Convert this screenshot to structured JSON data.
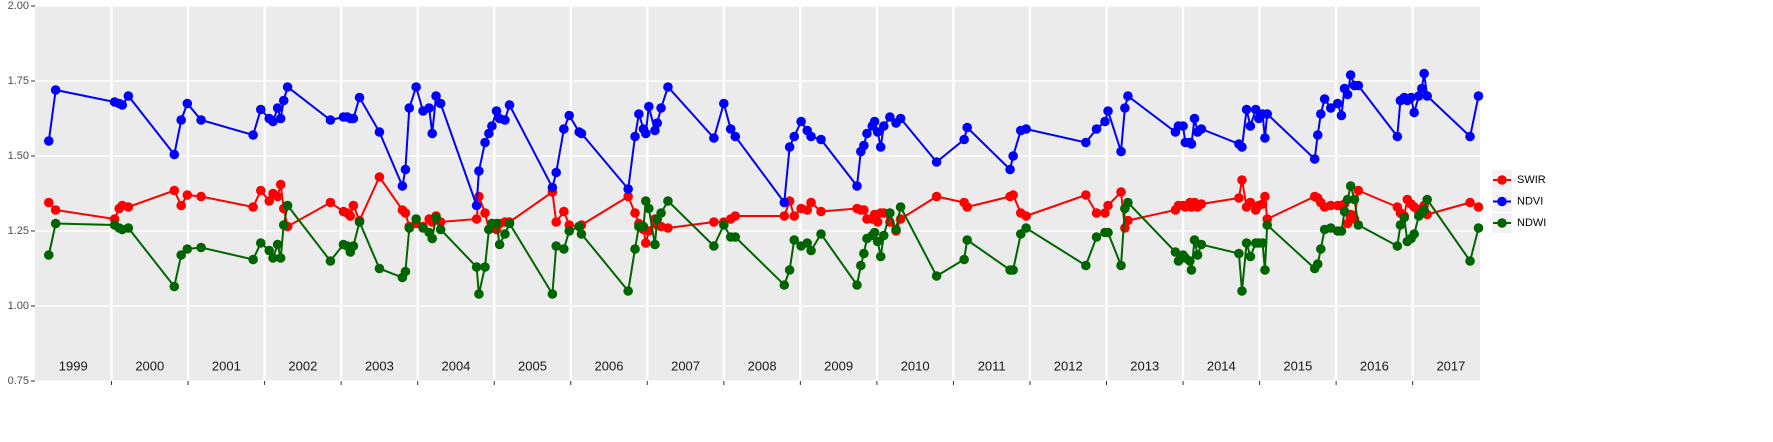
{
  "chart_data": {
    "type": "line",
    "legend": "right",
    "grid": true,
    "background": "#ebebeb",
    "xlim": [
      1999.0,
      2017.88
    ],
    "ylim": [
      0.75,
      2.0
    ],
    "yticks": [
      0.75,
      {
        "value": 1,
        "label": "1.00"
      },
      1.25,
      {
        "value": 1.5,
        "label": "1.50"
      },
      1.75,
      {
        "value": 2,
        "label": "2.00"
      }
    ],
    "xticks": [
      2000,
      2001,
      2002,
      2003,
      2004,
      2005,
      2006,
      2007,
      2008,
      2009,
      2010,
      2011,
      2012,
      2013,
      2014,
      2015,
      2016,
      2017
    ],
    "annotations": [
      {
        "x": 1999.5,
        "text": "1999"
      },
      {
        "x": 2000.5,
        "text": "2000"
      },
      {
        "x": 2001.5,
        "text": "2001"
      },
      {
        "x": 2002.5,
        "text": "2002"
      },
      {
        "x": 2003.5,
        "text": "2003"
      },
      {
        "x": 2004.5,
        "text": "2004"
      },
      {
        "x": 2005.5,
        "text": "2005"
      },
      {
        "x": 2006.5,
        "text": "2006"
      },
      {
        "x": 2007.5,
        "text": "2007"
      },
      {
        "x": 2008.5,
        "text": "2008"
      },
      {
        "x": 2009.5,
        "text": "2009"
      },
      {
        "x": 2010.5,
        "text": "2010"
      },
      {
        "x": 2011.5,
        "text": "2011"
      },
      {
        "x": 2012.5,
        "text": "2012"
      },
      {
        "x": 2013.5,
        "text": "2013"
      },
      {
        "x": 2014.5,
        "text": "2014"
      },
      {
        "x": 2015.5,
        "text": "2015"
      },
      {
        "x": 2016.5,
        "text": "2016"
      },
      {
        "x": 2017.5,
        "text": "2017"
      }
    ],
    "x": [
      1999.18,
      1999.27,
      2000.04,
      2000.1,
      2000.14,
      2000.22,
      2000.82,
      2000.91,
      2000.99,
      2001.17,
      2001.85,
      2001.95,
      2002.06,
      2002.11,
      2002.17,
      2002.21,
      2002.25,
      2002.3,
      2002.86,
      2003.03,
      2003.08,
      2003.12,
      2003.16,
      2003.24,
      2003.5,
      2003.8,
      2003.84,
      2003.89,
      2003.98,
      2004.07,
      2004.15,
      2004.19,
      2004.24,
      2004.3,
      2004.77,
      2004.8,
      2004.88,
      2004.93,
      2004.97,
      2005.03,
      2005.07,
      2005.14,
      2005.2,
      2005.76,
      2005.81,
      2005.91,
      2005.98,
      2006.11,
      2006.14,
      2006.75,
      2006.84,
      2006.89,
      2006.95,
      2006.98,
      2007.02,
      2007.1,
      2007.13,
      2007.18,
      2007.27,
      2007.87,
      2008.0,
      2008.09,
      2008.15,
      2008.79,
      2008.86,
      2008.92,
      2009.01,
      2009.09,
      2009.14,
      2009.27,
      2009.74,
      2009.79,
      2009.83,
      2009.87,
      2009.94,
      2009.97,
      2010.01,
      2010.05,
      2010.09,
      2010.17,
      2010.25,
      2010.31,
      2010.78,
      2011.14,
      2011.18,
      2011.74,
      2011.78,
      2011.88,
      2011.95,
      2012.73,
      2012.87,
      2012.98,
      2013.02,
      2013.19,
      2013.24,
      2013.28,
      2013.9,
      2013.94,
      2014.0,
      2014.03,
      2014.09,
      2014.11,
      2014.15,
      2014.19,
      2014.24,
      2014.73,
      2014.77,
      2014.83,
      2014.88,
      2014.95,
      2014.99,
      2015.04,
      2015.07,
      2015.1,
      2015.72,
      2015.76,
      2015.8,
      2015.85,
      2015.93,
      2016.02,
      2016.07,
      2016.11,
      2016.15,
      2016.19,
      2016.24,
      2016.29,
      2016.8,
      2016.84,
      2016.89,
      2016.93,
      2016.98,
      2017.02,
      2017.08,
      2017.12,
      2017.15,
      2017.19,
      2017.75,
      2017.86
    ],
    "series": [
      {
        "name": "SWIR",
        "color": "#ff0000",
        "values": [
          1.345,
          1.32,
          1.29,
          1.325,
          1.335,
          1.33,
          1.385,
          1.335,
          1.37,
          1.365,
          1.33,
          1.385,
          1.35,
          1.375,
          1.365,
          1.405,
          1.325,
          1.265,
          1.345,
          1.315,
          1.31,
          1.3,
          1.335,
          1.285,
          1.43,
          1.32,
          1.31,
          1.265,
          1.275,
          1.265,
          1.29,
          1.28,
          1.3,
          1.28,
          1.29,
          1.365,
          1.31,
          1.255,
          1.275,
          1.255,
          1.275,
          1.28,
          1.28,
          1.38,
          1.28,
          1.315,
          1.27,
          1.265,
          1.27,
          1.365,
          1.31,
          1.275,
          1.255,
          1.21,
          1.25,
          1.29,
          1.27,
          1.265,
          1.26,
          1.28,
          1.28,
          1.29,
          1.3,
          1.3,
          1.35,
          1.3,
          1.325,
          1.32,
          1.345,
          1.315,
          1.325,
          1.32,
          1.32,
          1.29,
          1.29,
          1.305,
          1.28,
          1.31,
          1.31,
          1.28,
          1.25,
          1.29,
          1.365,
          1.345,
          1.33,
          1.365,
          1.37,
          1.31,
          1.3,
          1.37,
          1.31,
          1.31,
          1.335,
          1.38,
          1.26,
          1.285,
          1.32,
          1.335,
          1.335,
          1.33,
          1.345,
          1.33,
          1.345,
          1.33,
          1.34,
          1.36,
          1.42,
          1.33,
          1.345,
          1.32,
          1.335,
          1.34,
          1.365,
          1.29,
          1.365,
          1.36,
          1.345,
          1.33,
          1.335,
          1.335,
          1.335,
          1.34,
          1.275,
          1.305,
          1.29,
          1.385,
          1.33,
          1.31,
          1.3,
          1.355,
          1.34,
          1.33,
          1.315,
          1.325,
          1.335,
          1.305,
          1.345,
          1.33
        ]
      },
      {
        "name": "NDVI",
        "color": "#0000ff",
        "values": [
          1.55,
          1.72,
          1.68,
          1.675,
          1.67,
          1.7,
          1.505,
          1.62,
          1.675,
          1.62,
          1.57,
          1.655,
          1.625,
          1.615,
          1.66,
          1.625,
          1.685,
          1.73,
          1.62,
          1.63,
          1.63,
          1.625,
          1.625,
          1.695,
          1.58,
          1.4,
          1.455,
          1.66,
          1.73,
          1.65,
          1.66,
          1.575,
          1.7,
          1.675,
          1.335,
          1.45,
          1.545,
          1.575,
          1.6,
          1.65,
          1.625,
          1.62,
          1.67,
          1.395,
          1.445,
          1.59,
          1.635,
          1.58,
          1.575,
          1.39,
          1.565,
          1.64,
          1.59,
          1.575,
          1.665,
          1.585,
          1.61,
          1.66,
          1.73,
          1.56,
          1.675,
          1.59,
          1.565,
          1.345,
          1.53,
          1.565,
          1.615,
          1.585,
          1.565,
          1.555,
          1.4,
          1.515,
          1.535,
          1.575,
          1.6,
          1.615,
          1.58,
          1.53,
          1.6,
          1.63,
          1.61,
          1.625,
          1.48,
          1.555,
          1.595,
          1.455,
          1.5,
          1.585,
          1.59,
          1.545,
          1.59,
          1.615,
          1.65,
          1.515,
          1.66,
          1.7,
          1.58,
          1.6,
          1.6,
          1.545,
          1.545,
          1.54,
          1.625,
          1.58,
          1.59,
          1.54,
          1.53,
          1.655,
          1.6,
          1.655,
          1.625,
          1.64,
          1.56,
          1.64,
          1.49,
          1.57,
          1.64,
          1.69,
          1.66,
          1.675,
          1.635,
          1.725,
          1.705,
          1.77,
          1.735,
          1.735,
          1.565,
          1.685,
          1.695,
          1.685,
          1.695,
          1.645,
          1.7,
          1.725,
          1.775,
          1.7,
          1.565,
          1.7
        ]
      },
      {
        "name": "NDWI",
        "color": "#006400",
        "values": [
          1.17,
          1.275,
          1.27,
          1.26,
          1.255,
          1.26,
          1.065,
          1.17,
          1.19,
          1.195,
          1.155,
          1.21,
          1.185,
          1.16,
          1.205,
          1.16,
          1.27,
          1.335,
          1.15,
          1.205,
          1.2,
          1.18,
          1.2,
          1.28,
          1.125,
          1.095,
          1.115,
          1.26,
          1.29,
          1.26,
          1.245,
          1.225,
          1.295,
          1.255,
          1.13,
          1.04,
          1.13,
          1.255,
          1.275,
          1.275,
          1.205,
          1.24,
          1.275,
          1.04,
          1.2,
          1.19,
          1.25,
          1.265,
          1.24,
          1.05,
          1.19,
          1.265,
          1.265,
          1.35,
          1.325,
          1.205,
          1.29,
          1.31,
          1.35,
          1.2,
          1.27,
          1.23,
          1.23,
          1.07,
          1.12,
          1.22,
          1.2,
          1.21,
          1.185,
          1.24,
          1.07,
          1.135,
          1.175,
          1.225,
          1.235,
          1.245,
          1.215,
          1.165,
          1.235,
          1.31,
          1.255,
          1.33,
          1.1,
          1.155,
          1.22,
          1.12,
          1.12,
          1.24,
          1.26,
          1.135,
          1.23,
          1.245,
          1.245,
          1.135,
          1.325,
          1.345,
          1.18,
          1.15,
          1.17,
          1.16,
          1.15,
          1.12,
          1.22,
          1.17,
          1.205,
          1.175,
          1.05,
          1.21,
          1.165,
          1.21,
          1.21,
          1.21,
          1.12,
          1.27,
          1.125,
          1.14,
          1.19,
          1.255,
          1.26,
          1.25,
          1.25,
          1.315,
          1.355,
          1.4,
          1.355,
          1.27,
          1.2,
          1.27,
          1.295,
          1.215,
          1.225,
          1.24,
          1.3,
          1.31,
          1.32,
          1.355,
          1.15,
          1.26
        ]
      }
    ]
  }
}
